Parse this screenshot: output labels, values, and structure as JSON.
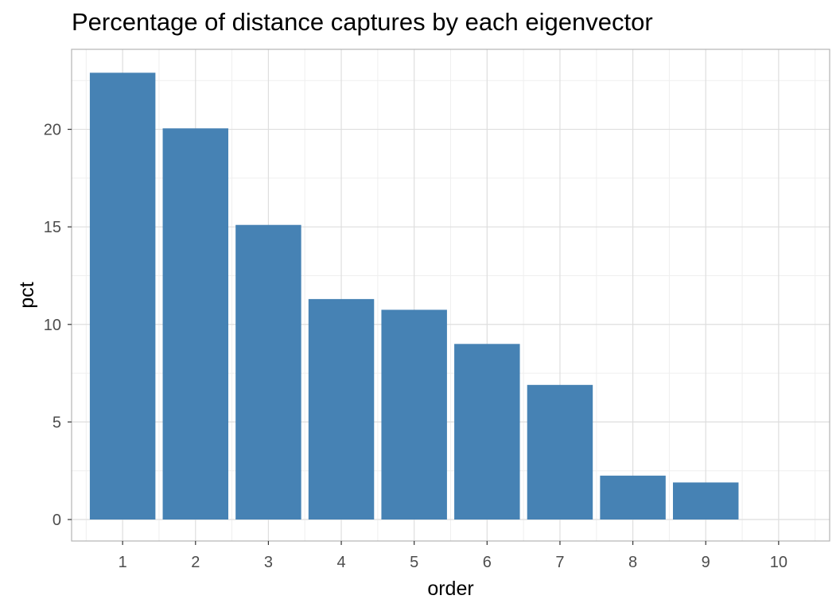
{
  "chart_data": {
    "type": "bar",
    "title": "Percentage of distance captures by each eigenvector",
    "xlabel": "order",
    "ylabel": "pct",
    "categories": [
      "1",
      "2",
      "3",
      "4",
      "5",
      "6",
      "7",
      "8",
      "9",
      "10"
    ],
    "values": [
      22.9,
      20.05,
      15.1,
      11.3,
      10.75,
      9.0,
      6.9,
      2.25,
      1.9,
      0
    ],
    "ylim": [
      -1.1,
      24.1
    ],
    "yticks": [
      0,
      5,
      10,
      15,
      20
    ],
    "grid": true,
    "legend": "none",
    "bar_color": "#4682B4",
    "grid_major_color": "#dedede",
    "grid_minor_color": "#efefef",
    "panel_border_color": "#b3b3b3"
  }
}
